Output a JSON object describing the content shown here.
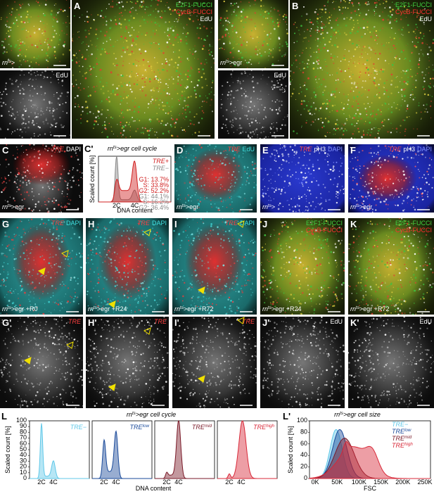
{
  "A": {
    "letter": "A",
    "channels": [
      "E2F1-FUCCI",
      "CycB-FUCCI",
      "EdU"
    ],
    "inset_label": "EdU",
    "genotype": [
      "rn",
      "ts",
      ">"
    ]
  },
  "B": {
    "letter": "B",
    "channels": [
      "E2F1-FUCCI",
      "CycB-FUCCI",
      "EdU"
    ],
    "inset_label": "EdU",
    "genotype": [
      "rn",
      "ts",
      ">egr"
    ]
  },
  "C": {
    "letter": "C",
    "stains": [
      "TRE",
      "DAPI"
    ],
    "genotype": [
      "rn",
      "ts",
      ">egr"
    ]
  },
  "C_chart": {
    "letter": "C'",
    "title": [
      "rn",
      "ts",
      ">egr cell cycle"
    ],
    "y_label": "Scaled count [%]",
    "x_label": "DNA content",
    "x_ticks": [
      "2C",
      "4C"
    ],
    "legend": [
      "TRE+",
      "TRE−"
    ],
    "stats_tre_pos": [
      "G1: 13.7%",
      "S: 33.8%",
      "G2: 52.2%"
    ],
    "stats_tre_neg": [
      "G1: 44.1%",
      "S: 16.2%",
      "G2: 36.4%"
    ]
  },
  "D": {
    "letter": "D",
    "stains": [
      "TRE",
      "EdU"
    ],
    "genotype": [
      "rn",
      "ts",
      ">egr"
    ]
  },
  "E": {
    "letter": "E",
    "stains": [
      "TRE",
      "pH3",
      "DAPI"
    ],
    "genotype": [
      "rn",
      "ts",
      ">"
    ]
  },
  "F": {
    "letter": "F",
    "stains": [
      "TRE",
      "pH3",
      "DAPI"
    ],
    "genotype": [
      "rn",
      "ts",
      ">egr"
    ]
  },
  "G": {
    "letter": "G",
    "stains": [
      "TRE",
      "DAPI"
    ],
    "genotype": [
      "rn",
      "ts",
      ">egr +R0"
    ]
  },
  "H": {
    "letter": "H",
    "stains": [
      "TRE",
      "DAPI"
    ],
    "genotype": [
      "rn",
      "ts",
      ">egr +R24"
    ]
  },
  "I": {
    "letter": "I",
    "stains": [
      "TRE",
      "DAPI"
    ],
    "genotype": [
      "rn",
      "ts",
      ">egr +R72"
    ]
  },
  "J": {
    "letter": "J",
    "channels": [
      "E2F1-FUCCI",
      "CycB-FUCCI"
    ],
    "genotype": [
      "rn",
      "ts",
      ">egr +R24"
    ]
  },
  "K": {
    "letter": "K",
    "channels": [
      "E2F1-FUCCI",
      "CycB-FUCCI"
    ],
    "genotype": [
      "rn",
      "ts",
      ">egr +R72"
    ]
  },
  "G2": {
    "letter": "G'",
    "stains": [
      "TRE"
    ]
  },
  "H2": {
    "letter": "H'",
    "stains": [
      "TRE"
    ]
  },
  "I2": {
    "letter": "I'",
    "stains": [
      "TRE"
    ]
  },
  "J2": {
    "letter": "J'",
    "stains": [
      "EdU"
    ]
  },
  "K2": {
    "letter": "K'",
    "stains": [
      "EdU"
    ]
  },
  "L": {
    "letter": "L",
    "title": [
      "rn",
      "ts",
      ">egr cell cycle"
    ],
    "y_label": "Scaled count [%]",
    "yticks": [
      0,
      10,
      20,
      30,
      40,
      50,
      60,
      70,
      80,
      90,
      100
    ],
    "x_label": "DNA content",
    "x_ticks": [
      "2C",
      "4C"
    ],
    "subplots": [
      [
        "TRE−"
      ],
      [
        "TRE",
        "low"
      ],
      [
        "TRE",
        "mid"
      ],
      [
        "TRE",
        "high"
      ]
    ]
  },
  "L2": {
    "letter": "L'",
    "title": [
      "rn",
      "ts",
      ">egr cell size"
    ],
    "y_label": "Scaled count [%]",
    "yticks": [
      0,
      20,
      40,
      60,
      80,
      100
    ],
    "x_label": "FSC",
    "x_ticks": [
      "0K",
      "50K",
      "100K",
      "150K",
      "200K",
      "250K"
    ],
    "legend": [
      [
        "TRE−"
      ],
      [
        "TRE",
        "low"
      ],
      [
        "TRE",
        "mid"
      ],
      [
        "TRE",
        "high"
      ]
    ]
  }
}
